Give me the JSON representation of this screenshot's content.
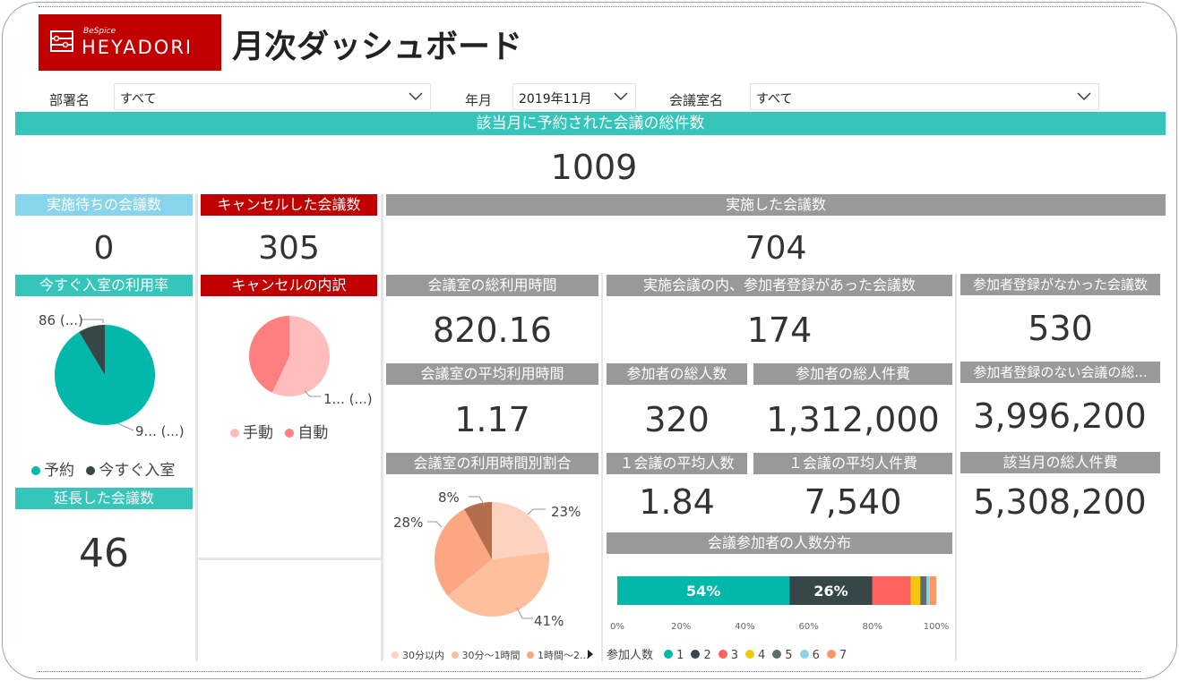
{
  "header": {
    "logo_small": "BeSpice",
    "logo_name": "HEYADORI",
    "title": "月次ダッシュボード"
  },
  "filters": {
    "dept_label": "部署名",
    "dept_value": "すべて",
    "month_label": "年月",
    "month_value": "2019年11月",
    "room_label": "会議室名",
    "room_value": "すべて"
  },
  "total": {
    "label": "該当月に予約された会議の総件数",
    "value": "1009"
  },
  "waiting": {
    "label": "実施待ちの会議数",
    "value": "0"
  },
  "cancelled": {
    "label": "キャンセルした会議数",
    "value": "305"
  },
  "held": {
    "label": "実施した会議数",
    "value": "704"
  },
  "instant_rate": {
    "label": "今すぐ入室の利用率",
    "slice_label_small": "86 (...)",
    "slice_label_large": "9... (...)",
    "legend": [
      "予約",
      "今すぐ入室"
    ],
    "colors": [
      "#01b8aa",
      "#374649"
    ],
    "values": [
      918,
      86
    ]
  },
  "extended": {
    "label": "延長した会議数",
    "value": "46"
  },
  "cancel_breakdown": {
    "label": "キャンセルの内訳",
    "slice_label": "1... (...)",
    "legend": [
      "手動",
      "自動"
    ],
    "colors": [
      "#ffbdbd",
      "#fd7f7f"
    ],
    "values": [
      57,
      43
    ]
  },
  "room_total_time": {
    "label": "会議室の総利用時間",
    "value": "820.16"
  },
  "room_avg_time": {
    "label": "会議室の平均利用時間",
    "value": "1.17"
  },
  "time_ratio": {
    "label": "会議室の利用時間別割合",
    "slices": [
      {
        "label": "23%",
        "value": 23,
        "color": "#fcd3c1"
      },
      {
        "label": "41%",
        "value": 41,
        "color": "#fdbf9e"
      },
      {
        "label": "28%",
        "value": 28,
        "color": "#fba782"
      },
      {
        "label": "8%",
        "value": 8,
        "color": "#b46e4d"
      }
    ],
    "legend": [
      "30分以内",
      "30分～1時間",
      "1時間～2..."
    ],
    "legend_colors": [
      "#fcd3c1",
      "#fdbf9e",
      "#fba782"
    ]
  },
  "registered": {
    "label": "実施会議の内、参加者登録があった会議数",
    "value": "174"
  },
  "participants": {
    "label": "参加者の総人数",
    "value": "320"
  },
  "participant_cost": {
    "label": "参加者の総人件費",
    "value": "1,312,000"
  },
  "avg_people": {
    "label": "１会議の平均人数",
    "value": "1.84"
  },
  "avg_cost": {
    "label": "１会議の平均人件費",
    "value": "7,540"
  },
  "distribution": {
    "label": "会議参加者の人数分布",
    "segments": [
      {
        "name": "1",
        "value": 54,
        "color": "#01b8aa",
        "text": "54%"
      },
      {
        "name": "2",
        "value": 26,
        "color": "#374649",
        "text": "26%"
      },
      {
        "name": "3",
        "value": 12,
        "color": "#fd625e",
        "text": ""
      },
      {
        "name": "4",
        "value": 3,
        "color": "#f2c80f",
        "text": ""
      },
      {
        "name": "5",
        "value": 2,
        "color": "#5f6b6d",
        "text": ""
      },
      {
        "name": "6",
        "value": 1,
        "color": "#8ad4eb",
        "text": ""
      },
      {
        "name": "7",
        "value": 2,
        "color": "#fe9666",
        "text": ""
      }
    ],
    "axis_ticks": [
      "0%",
      "20%",
      "40%",
      "60%",
      "80%",
      "100%"
    ],
    "legend_title": "参加人数"
  },
  "no_reg": {
    "label": "参加者登録がなかった会議数",
    "value": "530"
  },
  "no_reg_cost": {
    "label": "参加者登録のない会議の総...",
    "value": "3,996,200"
  },
  "month_cost": {
    "label": "該当月の総人件費",
    "value": "5,308,200"
  }
}
